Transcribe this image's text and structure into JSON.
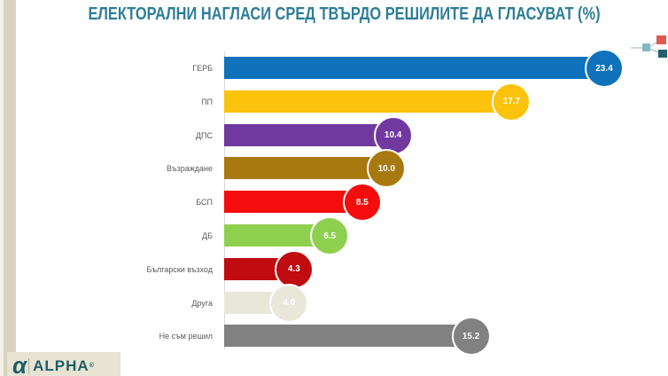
{
  "title": "ЕЛЕКТОРАЛНИ НАГЛАСИ СРЕД ТВЪРДО РЕШИЛИТЕ ДА ГЛАСУВАТ (%)",
  "brand": {
    "name": "ALPHA",
    "glyph": "α",
    "registered": "®"
  },
  "colors": {
    "title_text": "#2e7e97",
    "label_text": "#595959",
    "axis_line": "#d9d9d9",
    "side_strip": "#d8d4bf",
    "logo_bg": "#e7e4d3",
    "logo_text": "#1d5e66",
    "icon_light_teal": "#85b7c3",
    "icon_red": "#dd5a4d",
    "icon_dark_teal": "#265f6e"
  },
  "chart_data": {
    "type": "bar",
    "orientation": "horizontal",
    "title": "ЕЛЕКТОРАЛНИ НАГЛАСИ СРЕД ТВЪРДО РЕШИЛИТЕ ДА ГЛАСУВАТ (%)",
    "categories": [
      "ГЕРБ",
      "ПП",
      "ДПС",
      "Възраждане",
      "БСП",
      "ДБ",
      "Български възход",
      "Друга",
      "Не съм решил"
    ],
    "values": [
      23.4,
      17.7,
      10.4,
      10.0,
      8.5,
      6.5,
      4.3,
      4.0,
      15.2
    ],
    "value_labels": [
      "23.4",
      "17.7",
      "10.4",
      "10.0",
      "8.5",
      "6.5",
      "4.3",
      "4.0",
      "15.2"
    ],
    "bar_colors": [
      "#0f72bb",
      "#fcc30c",
      "#7138a0",
      "#a8790f",
      "#f50d0d",
      "#8ed04e",
      "#c00b10",
      "#e9e7da",
      "#818181"
    ],
    "value_label_color": "#ffffff",
    "xlim": [
      0,
      25
    ],
    "grid": false,
    "legend": false
  }
}
